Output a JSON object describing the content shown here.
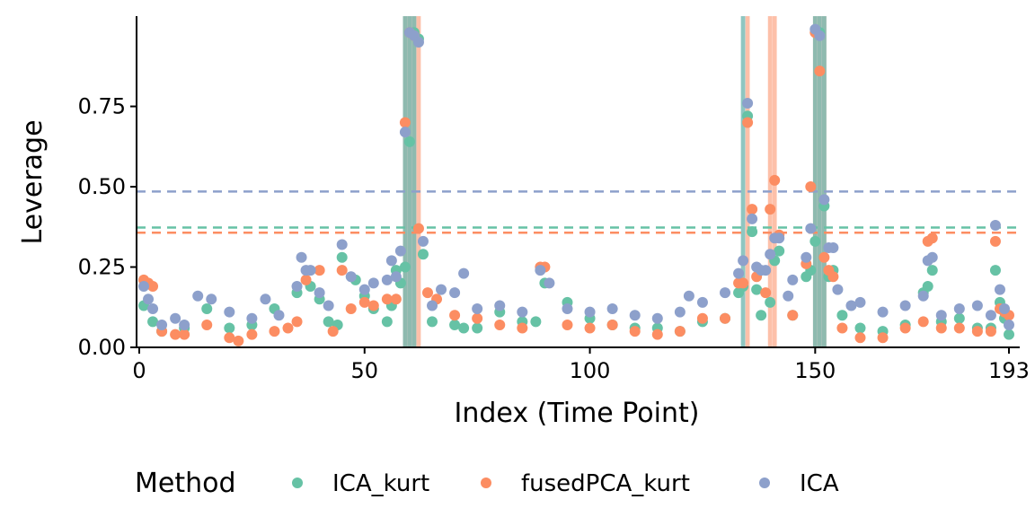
{
  "chart_data": {
    "type": "scatter",
    "xlabel": "Index (Time Point)",
    "ylabel": "Leverage",
    "xlim": [
      0,
      195
    ],
    "ylim": [
      0,
      1.0
    ],
    "x_ticks": [
      0,
      50,
      100,
      150,
      193
    ],
    "y_ticks": [
      0.0,
      0.25,
      0.5,
      0.75
    ],
    "y_tick_labels": [
      "0.00",
      "0.25",
      "0.50",
      "0.75"
    ],
    "legend": {
      "title": "Method",
      "placement": "bottom",
      "entries": [
        "ICA_kurt",
        "fusedPCA_kurt",
        "ICA"
      ]
    },
    "thresholds": [
      {
        "series": "ICA",
        "value": 0.485,
        "color": "#8DA0CB"
      },
      {
        "series": "ICA_kurt",
        "value": 0.373,
        "color": "#66C2A5"
      },
      {
        "series": "fusedPCA_kurt",
        "value": 0.357,
        "color": "#FC8D62"
      }
    ],
    "highlight_bands": [
      {
        "series": "fusedPCA_kurt",
        "x": [
          59,
          60,
          61,
          62,
          135,
          140,
          141,
          150,
          151,
          152
        ],
        "color": "#FC8D62"
      },
      {
        "series": "ICA",
        "x": [
          59,
          60,
          61,
          134,
          150,
          151,
          152
        ],
        "color": "#8DA0CB"
      },
      {
        "series": "ICA_kurt",
        "x": [
          59,
          60,
          61,
          134,
          150,
          151,
          152
        ],
        "color": "#66C2A5"
      }
    ],
    "series": [
      {
        "name": "ICA_kurt",
        "color": "#66C2A5",
        "x": [
          1,
          3,
          5,
          10,
          15,
          20,
          25,
          30,
          35,
          38,
          40,
          42,
          44,
          45,
          48,
          50,
          52,
          55,
          56,
          57,
          58,
          59,
          60,
          61,
          62,
          63,
          65,
          70,
          72,
          75,
          80,
          85,
          88,
          90,
          95,
          100,
          105,
          110,
          115,
          120,
          125,
          130,
          133,
          134,
          135,
          136,
          137,
          138,
          140,
          141,
          142,
          145,
          148,
          149,
          150,
          151,
          152,
          153,
          154,
          156,
          160,
          165,
          170,
          174,
          175,
          176,
          178,
          182,
          186,
          189,
          190,
          191,
          192,
          193
        ],
        "values": [
          0.13,
          0.08,
          0.05,
          0.06,
          0.12,
          0.06,
          0.07,
          0.12,
          0.17,
          0.19,
          0.15,
          0.08,
          0.07,
          0.28,
          0.21,
          0.16,
          0.12,
          0.08,
          0.13,
          0.24,
          0.2,
          0.25,
          0.64,
          0.98,
          0.96,
          0.29,
          0.08,
          0.07,
          0.06,
          0.06,
          0.11,
          0.08,
          0.08,
          0.2,
          0.14,
          0.09,
          0.07,
          0.06,
          0.06,
          0.05,
          0.08,
          0.09,
          0.17,
          0.19,
          0.72,
          0.36,
          0.18,
          0.1,
          0.14,
          0.27,
          0.3,
          0.1,
          0.22,
          0.24,
          0.33,
          0.98,
          0.44,
          0.22,
          0.24,
          0.1,
          0.06,
          0.05,
          0.07,
          0.17,
          0.19,
          0.24,
          0.08,
          0.09,
          0.06,
          0.06,
          0.24,
          0.14,
          0.09,
          0.04
        ]
      },
      {
        "name": "fusedPCA_kurt",
        "color": "#FC8D62",
        "x": [
          1,
          2,
          3,
          5,
          8,
          10,
          15,
          20,
          22,
          25,
          30,
          33,
          35,
          37,
          40,
          43,
          45,
          47,
          50,
          52,
          55,
          57,
          59,
          60,
          61,
          62,
          64,
          66,
          70,
          75,
          80,
          85,
          89,
          90,
          95,
          100,
          105,
          110,
          115,
          120,
          125,
          130,
          133,
          134,
          135,
          136,
          137,
          139,
          140,
          141,
          142,
          145,
          148,
          149,
          150,
          151,
          152,
          153,
          154,
          156,
          160,
          165,
          170,
          174,
          175,
          176,
          178,
          182,
          186,
          189,
          190,
          191,
          192,
          193
        ],
        "values": [
          0.21,
          0.2,
          0.19,
          0.05,
          0.04,
          0.04,
          0.07,
          0.03,
          0.02,
          0.04,
          0.05,
          0.06,
          0.08,
          0.21,
          0.24,
          0.05,
          0.24,
          0.12,
          0.14,
          0.13,
          0.15,
          0.15,
          0.7,
          0.98,
          0.97,
          0.37,
          0.17,
          0.15,
          0.1,
          0.09,
          0.07,
          0.06,
          0.25,
          0.25,
          0.07,
          0.06,
          0.07,
          0.05,
          0.04,
          0.05,
          0.09,
          0.09,
          0.2,
          0.2,
          0.7,
          0.43,
          0.22,
          0.17,
          0.43,
          0.52,
          0.35,
          0.1,
          0.26,
          0.5,
          0.98,
          0.86,
          0.28,
          0.24,
          0.22,
          0.06,
          0.03,
          0.03,
          0.06,
          0.08,
          0.33,
          0.34,
          0.06,
          0.06,
          0.05,
          0.05,
          0.33,
          0.12,
          0.11,
          0.1
        ]
      },
      {
        "name": "ICA",
        "color": "#8DA0CB",
        "x": [
          1,
          2,
          3,
          5,
          8,
          10,
          13,
          16,
          20,
          25,
          28,
          31,
          35,
          36,
          37,
          38,
          40,
          42,
          45,
          47,
          50,
          52,
          55,
          56,
          57,
          58,
          59,
          60,
          61,
          62,
          63,
          65,
          67,
          70,
          72,
          75,
          80,
          85,
          89,
          91,
          95,
          100,
          105,
          110,
          115,
          120,
          122,
          125,
          130,
          133,
          134,
          135,
          136,
          137,
          138,
          139,
          140,
          141,
          142,
          144,
          145,
          148,
          149,
          150,
          151,
          152,
          153,
          154,
          155,
          158,
          160,
          165,
          170,
          174,
          175,
          176,
          178,
          182,
          186,
          189,
          190,
          191,
          192,
          193
        ],
        "values": [
          0.19,
          0.15,
          0.12,
          0.07,
          0.09,
          0.07,
          0.16,
          0.15,
          0.11,
          0.09,
          0.15,
          0.1,
          0.19,
          0.28,
          0.24,
          0.24,
          0.17,
          0.13,
          0.32,
          0.22,
          0.18,
          0.2,
          0.21,
          0.27,
          0.22,
          0.3,
          0.67,
          0.98,
          0.97,
          0.95,
          0.33,
          0.13,
          0.18,
          0.17,
          0.23,
          0.12,
          0.13,
          0.11,
          0.24,
          0.2,
          0.12,
          0.11,
          0.12,
          0.1,
          0.09,
          0.11,
          0.16,
          0.14,
          0.17,
          0.23,
          0.27,
          0.76,
          0.4,
          0.25,
          0.24,
          0.24,
          0.29,
          0.34,
          0.34,
          0.16,
          0.21,
          0.28,
          0.37,
          0.99,
          0.97,
          0.46,
          0.31,
          0.31,
          0.18,
          0.13,
          0.14,
          0.11,
          0.13,
          0.16,
          0.27,
          0.28,
          0.1,
          0.12,
          0.13,
          0.1,
          0.38,
          0.18,
          0.12,
          0.07
        ]
      }
    ]
  }
}
